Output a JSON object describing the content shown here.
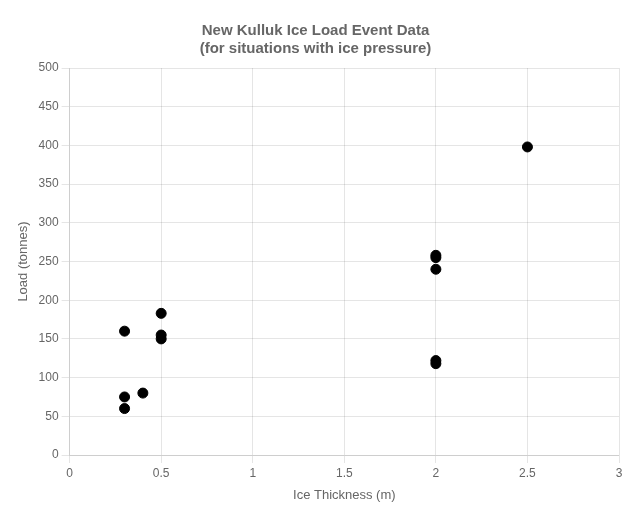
{
  "chart_data": {
    "type": "scatter",
    "title": "New Kulluk Ice Load Event Data",
    "subtitle": "(for situations with ice pressure)",
    "x_label": "Ice Thickness (m)",
    "y_label": "Load (tonnes)",
    "x": [
      0.3,
      0.3,
      0.3,
      0.4,
      0.5,
      0.5,
      0.5,
      2.0,
      2.0,
      2.0,
      2.0,
      2.0,
      2.5
    ],
    "values": [
      160,
      75,
      60,
      80,
      183,
      155,
      150,
      258,
      255,
      240,
      122,
      118,
      398
    ],
    "color": "#000000",
    "xlim": [
      0,
      3
    ],
    "ylim": [
      0,
      500
    ],
    "xticks": [
      0,
      0.5,
      1,
      1.5,
      2,
      2.5,
      3
    ],
    "yticks": [
      0,
      50,
      100,
      150,
      200,
      250,
      300,
      350,
      400,
      450,
      500
    ],
    "grid": true
  }
}
